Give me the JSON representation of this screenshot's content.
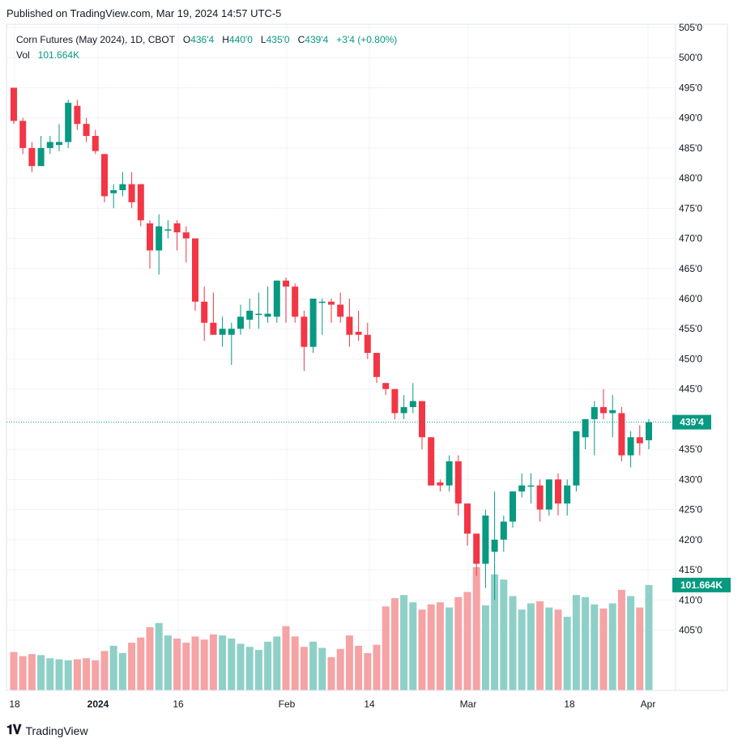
{
  "published": "Published on TradingView.com, Mar 19, 2024 14:57 UTC-5",
  "legend": {
    "symbol": "Corn Futures (May 2024), 1D, CBOT",
    "o_label": "O",
    "o_value": "436'4",
    "h_label": "H",
    "h_value": "440'0",
    "l_label": "L",
    "l_value": "435'0",
    "c_label": "C",
    "c_value": "439'4",
    "change": "+3'4 (+0.80%)",
    "vol_label": "Vol",
    "vol_value": "101.664K"
  },
  "footer": {
    "brand": "TradingView"
  },
  "colors": {
    "up": "#089981",
    "down": "#f23645",
    "vol_up": "#8ed0c7",
    "vol_down": "#f5a3a5",
    "grid": "#f0f3fa"
  },
  "chart_data": {
    "type": "candlestick",
    "price_axis": {
      "ticks": [
        "405'0",
        "410'0",
        "415'0",
        "420'0",
        "425'0",
        "430'0",
        "435'0",
        "440'0",
        "445'0",
        "450'0",
        "455'0",
        "460'0",
        "465'0",
        "470'0",
        "475'0",
        "480'0",
        "485'0",
        "490'0",
        "495'0",
        "500'0",
        "505'0"
      ],
      "range": [
        400,
        506
      ]
    },
    "time_axis": {
      "ticks": [
        "18",
        "2024",
        "16",
        "Feb",
        "14",
        "Mar",
        "18",
        "Apr"
      ]
    },
    "last_price_label": "439'4",
    "last_volume_label": "101.664K",
    "candles": [
      {
        "o": 495,
        "h": 495,
        "l": 489,
        "c": 489.5,
        "v": 37
      },
      {
        "o": 489.5,
        "h": 490,
        "l": 484,
        "c": 485,
        "v": 33
      },
      {
        "o": 485,
        "h": 486,
        "l": 481,
        "c": 482,
        "v": 35
      },
      {
        "o": 482,
        "h": 487,
        "l": 482,
        "c": 485,
        "v": 34
      },
      {
        "o": 485,
        "h": 487,
        "l": 484,
        "c": 486,
        "v": 31
      },
      {
        "o": 485.5,
        "h": 489,
        "l": 484.5,
        "c": 486,
        "v": 30
      },
      {
        "o": 486,
        "h": 493,
        "l": 485,
        "c": 492.5,
        "v": 29
      },
      {
        "o": 492,
        "h": 493,
        "l": 488,
        "c": 489,
        "v": 30
      },
      {
        "o": 489,
        "h": 490,
        "l": 486,
        "c": 487,
        "v": 31
      },
      {
        "o": 487,
        "h": 488,
        "l": 484,
        "c": 484.5,
        "v": 29
      },
      {
        "o": 484,
        "h": 484,
        "l": 476,
        "c": 477,
        "v": 38
      },
      {
        "o": 477.5,
        "h": 479,
        "l": 475,
        "c": 478,
        "v": 43
      },
      {
        "o": 478,
        "h": 481,
        "l": 477,
        "c": 479,
        "v": 36
      },
      {
        "o": 479,
        "h": 481,
        "l": 475,
        "c": 476,
        "v": 46
      },
      {
        "o": 479,
        "h": 479,
        "l": 472,
        "c": 473,
        "v": 51
      },
      {
        "o": 472.5,
        "h": 473,
        "l": 465,
        "c": 468,
        "v": 61
      },
      {
        "o": 468,
        "h": 474,
        "l": 464,
        "c": 472,
        "v": 65
      },
      {
        "o": 471.5,
        "h": 473,
        "l": 470,
        "c": 471.5,
        "v": 53
      },
      {
        "o": 472.5,
        "h": 473,
        "l": 468,
        "c": 471,
        "v": 50
      },
      {
        "o": 471,
        "h": 472,
        "l": 466,
        "c": 470,
        "v": 46
      },
      {
        "o": 470,
        "h": 470,
        "l": 458,
        "c": 459.5,
        "v": 52
      },
      {
        "o": 459.5,
        "h": 462,
        "l": 453,
        "c": 456,
        "v": 49
      },
      {
        "o": 456,
        "h": 461,
        "l": 454,
        "c": 454,
        "v": 54
      },
      {
        "o": 454,
        "h": 457,
        "l": 452,
        "c": 455,
        "v": 53
      },
      {
        "o": 454,
        "h": 456,
        "l": 449,
        "c": 455,
        "v": 50
      },
      {
        "o": 455,
        "h": 459,
        "l": 454,
        "c": 457,
        "v": 45
      },
      {
        "o": 456.5,
        "h": 460,
        "l": 455,
        "c": 458,
        "v": 42
      },
      {
        "o": 457.5,
        "h": 461,
        "l": 455,
        "c": 457.5,
        "v": 39
      },
      {
        "o": 457,
        "h": 462,
        "l": 456,
        "c": 457.5,
        "v": 47
      },
      {
        "o": 457,
        "h": 463,
        "l": 456,
        "c": 463,
        "v": 52
      },
      {
        "o": 463,
        "h": 463.5,
        "l": 456,
        "c": 462,
        "v": 62
      },
      {
        "o": 462,
        "h": 462.5,
        "l": 456,
        "c": 457,
        "v": 52
      },
      {
        "o": 457,
        "h": 458,
        "l": 448,
        "c": 452,
        "v": 42
      },
      {
        "o": 452,
        "h": 460,
        "l": 451,
        "c": 460,
        "v": 47
      },
      {
        "o": 459.5,
        "h": 460,
        "l": 454,
        "c": 459.5,
        "v": 41
      },
      {
        "o": 459.5,
        "h": 460,
        "l": 456,
        "c": 459,
        "v": 32
      },
      {
        "o": 459,
        "h": 461,
        "l": 456,
        "c": 457,
        "v": 40
      },
      {
        "o": 457,
        "h": 460,
        "l": 452,
        "c": 454,
        "v": 53
      },
      {
        "o": 454.5,
        "h": 458,
        "l": 453,
        "c": 454,
        "v": 43
      },
      {
        "o": 454,
        "h": 456,
        "l": 450,
        "c": 451,
        "v": 36
      },
      {
        "o": 451,
        "h": 451,
        "l": 446,
        "c": 447,
        "v": 44
      },
      {
        "o": 446,
        "h": 446,
        "l": 444,
        "c": 445,
        "v": 81
      },
      {
        "o": 445,
        "h": 445,
        "l": 440,
        "c": 441,
        "v": 89
      },
      {
        "o": 441,
        "h": 444,
        "l": 440,
        "c": 442,
        "v": 92
      },
      {
        "o": 442,
        "h": 446,
        "l": 441,
        "c": 443,
        "v": 85
      },
      {
        "o": 443,
        "h": 443,
        "l": 435,
        "c": 437,
        "v": 78
      },
      {
        "o": 437,
        "h": 437,
        "l": 429,
        "c": 429,
        "v": 83
      },
      {
        "o": 429.5,
        "h": 430,
        "l": 428,
        "c": 429,
        "v": 85
      },
      {
        "o": 429,
        "h": 434,
        "l": 428,
        "c": 433,
        "v": 80
      },
      {
        "o": 433,
        "h": 434,
        "l": 424,
        "c": 426,
        "v": 90
      },
      {
        "o": 426,
        "h": 426,
        "l": 419,
        "c": 421,
        "v": 95
      },
      {
        "o": 421,
        "h": 421,
        "l": 414,
        "c": 416,
        "v": 119
      },
      {
        "o": 416,
        "h": 425,
        "l": 412,
        "c": 424,
        "v": 82
      },
      {
        "o": 418,
        "h": 428,
        "l": 410,
        "c": 420,
        "v": 112
      },
      {
        "o": 420,
        "h": 424,
        "l": 418,
        "c": 423,
        "v": 107
      },
      {
        "o": 423,
        "h": 428,
        "l": 422,
        "c": 428,
        "v": 91
      },
      {
        "o": 428,
        "h": 431,
        "l": 427,
        "c": 429,
        "v": 78
      },
      {
        "o": 429,
        "h": 431,
        "l": 426,
        "c": 429,
        "v": 84
      },
      {
        "o": 429,
        "h": 430,
        "l": 423,
        "c": 425,
        "v": 86
      },
      {
        "o": 425,
        "h": 430,
        "l": 424,
        "c": 430,
        "v": 80
      },
      {
        "o": 430,
        "h": 431,
        "l": 424,
        "c": 426,
        "v": 78
      },
      {
        "o": 426,
        "h": 430,
        "l": 424,
        "c": 429,
        "v": 71
      },
      {
        "o": 429,
        "h": 438,
        "l": 428,
        "c": 438,
        "v": 92
      },
      {
        "o": 437,
        "h": 440,
        "l": 435,
        "c": 440,
        "v": 90
      },
      {
        "o": 440,
        "h": 443,
        "l": 434,
        "c": 442,
        "v": 83
      },
      {
        "o": 442,
        "h": 445,
        "l": 440,
        "c": 441,
        "v": 79
      },
      {
        "o": 441,
        "h": 444,
        "l": 437,
        "c": 441.5,
        "v": 84
      },
      {
        "o": 441,
        "h": 442,
        "l": 433,
        "c": 434,
        "v": 97
      },
      {
        "o": 434,
        "h": 438,
        "l": 432,
        "c": 437,
        "v": 91
      },
      {
        "o": 437,
        "h": 439,
        "l": 434,
        "c": 436,
        "v": 80
      },
      {
        "o": 436.5,
        "h": 440,
        "l": 435,
        "c": 439.5,
        "v": 101.664
      }
    ]
  }
}
